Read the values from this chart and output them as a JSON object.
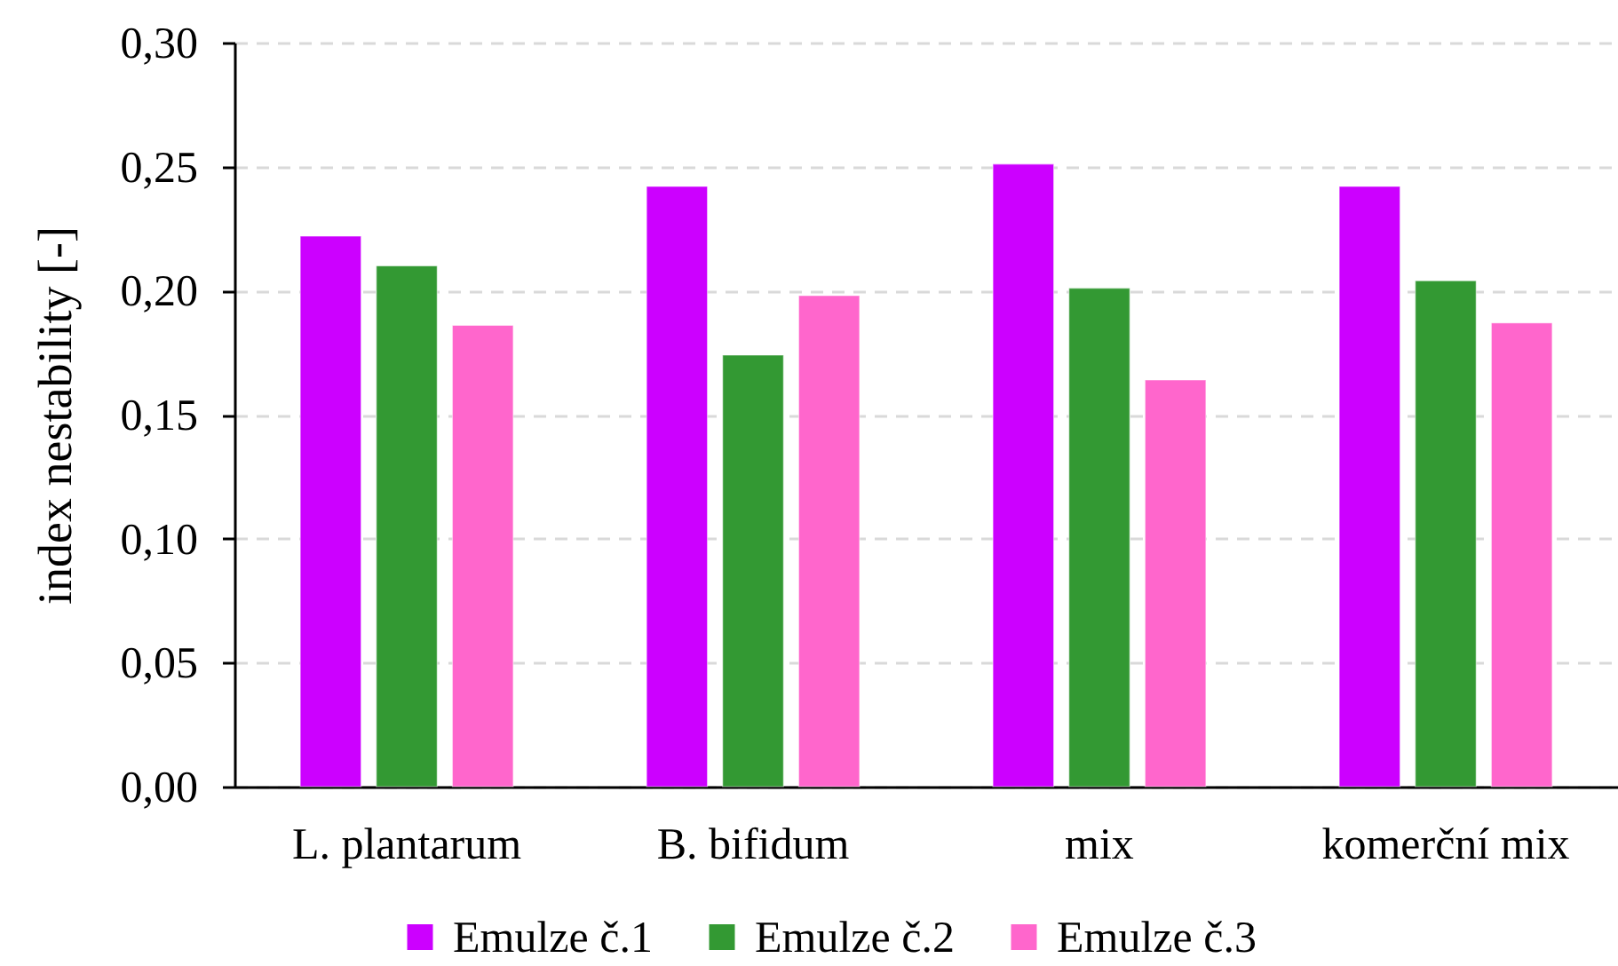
{
  "chart_data": {
    "type": "bar",
    "ylabel": "index nestability [-]",
    "categories": [
      "L. plantarum",
      "B. bifidum",
      "mix",
      "komerční mix"
    ],
    "series": [
      {
        "name": "Emulze č.1",
        "color": "#cc00ff",
        "values": [
          0.222,
          0.242,
          0.251,
          0.242
        ]
      },
      {
        "name": "Emulze č.2",
        "color": "#339933",
        "values": [
          0.21,
          0.174,
          0.201,
          0.204
        ]
      },
      {
        "name": "Emulze č.3",
        "color": "#ff66cc",
        "values": [
          0.186,
          0.198,
          0.164,
          0.187
        ]
      }
    ],
    "ylim": [
      0,
      0.3
    ],
    "yticks": [
      {
        "value": 0,
        "label": "0,00"
      },
      {
        "value": 0.05,
        "label": "0,05"
      },
      {
        "value": 0.1,
        "label": "0,10"
      },
      {
        "value": 0.15,
        "label": "0,15"
      },
      {
        "value": 0.2,
        "label": "0,20"
      },
      {
        "value": 0.25,
        "label": "0,25"
      },
      {
        "value": 0.3,
        "label": "0,30"
      }
    ],
    "grid": "y",
    "legend": "bottom"
  }
}
